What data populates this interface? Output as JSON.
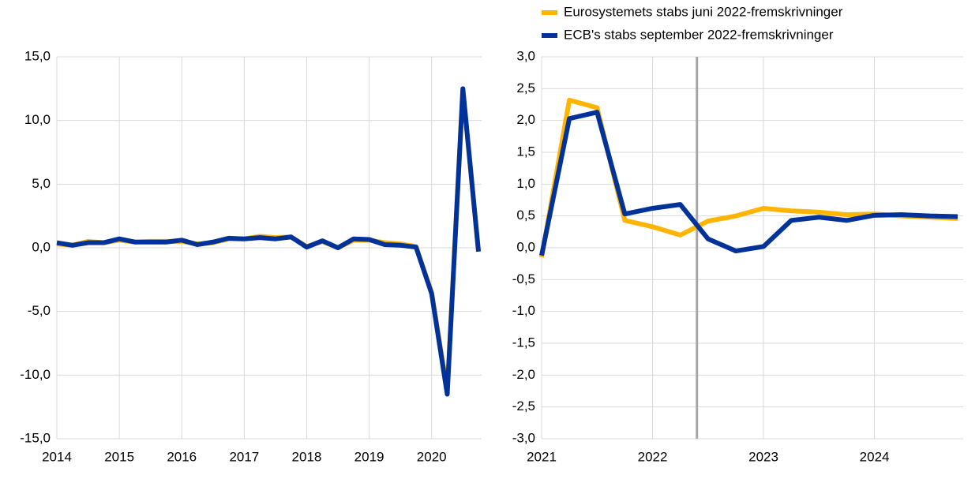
{
  "chart_data": [
    {
      "type": "line",
      "x": [
        2014,
        2014.25,
        2014.5,
        2014.75,
        2015,
        2015.25,
        2015.5,
        2015.75,
        2016,
        2016.25,
        2016.5,
        2016.75,
        2017,
        2017.25,
        2017.5,
        2017.75,
        2018,
        2018.25,
        2018.5,
        2018.75,
        2019,
        2019.25,
        2019.5,
        2019.75,
        2020,
        2020.25,
        2020.5,
        2020.75
      ],
      "series": [
        {
          "color": "#ffb400",
          "values": [
            0.3,
            0.2,
            0.5,
            0.4,
            0.6,
            0.45,
            0.5,
            0.5,
            0.5,
            0.3,
            0.4,
            0.7,
            0.7,
            0.9,
            0.8,
            0.85,
            0.1,
            0.5,
            0.0,
            0.6,
            0.6,
            0.4,
            0.3,
            0.1,
            -3.5,
            -11.2,
            12.4,
            -0.3
          ]
        },
        {
          "color": "#003299",
          "values": [
            0.4,
            0.2,
            0.4,
            0.4,
            0.7,
            0.45,
            0.45,
            0.45,
            0.6,
            0.25,
            0.45,
            0.75,
            0.7,
            0.8,
            0.7,
            0.85,
            0.05,
            0.55,
            0.0,
            0.7,
            0.65,
            0.25,
            0.2,
            0.05,
            -3.6,
            -11.5,
            12.5,
            -0.3
          ]
        }
      ],
      "xlim": [
        2014,
        2020.8
      ],
      "xticks": [
        2014,
        2015,
        2016,
        2017,
        2018,
        2019,
        2020
      ],
      "ylim": [
        -15,
        15
      ],
      "yticks": [
        {
          "value": -15,
          "label": "-15,0"
        },
        {
          "value": -10,
          "label": "-10,0"
        },
        {
          "value": -5,
          "label": "-5,0"
        },
        {
          "value": 0,
          "label": "0,0"
        },
        {
          "value": 5,
          "label": "5,0"
        },
        {
          "value": 10,
          "label": "10,0"
        },
        {
          "value": 15,
          "label": "15,0"
        }
      ],
      "grid": true
    },
    {
      "type": "line",
      "x": [
        2021,
        2021.25,
        2021.5,
        2021.75,
        2022,
        2022.25,
        2022.5,
        2022.75,
        2023,
        2023.25,
        2023.5,
        2023.75,
        2024,
        2024.25,
        2024.5,
        2024.75
      ],
      "series": [
        {
          "name": "Eurosystemets stabs juni 2022-fremskrivninger",
          "color": "#ffb400",
          "values": [
            -0.15,
            2.32,
            2.2,
            0.43,
            0.33,
            0.2,
            0.42,
            0.5,
            0.62,
            0.58,
            0.56,
            0.52,
            0.53,
            0.5,
            0.48,
            0.46
          ]
        },
        {
          "name": "ECB's stabs september 2022-fremskrivninger",
          "color": "#003299",
          "values": [
            -0.12,
            2.03,
            2.13,
            0.53,
            0.62,
            0.68,
            0.14,
            -0.05,
            0.02,
            0.43,
            0.48,
            0.43,
            0.51,
            0.52,
            0.5,
            0.49
          ]
        }
      ],
      "xlim": [
        2021,
        2024.8
      ],
      "xticks": [
        2021,
        2022,
        2023,
        2024
      ],
      "ylim": [
        -3,
        3
      ],
      "yticks": [
        {
          "value": -3,
          "label": "-3,0"
        },
        {
          "value": -2.5,
          "label": "-2,5"
        },
        {
          "value": -2,
          "label": "-2,0"
        },
        {
          "value": -1.5,
          "label": "-1,5"
        },
        {
          "value": -1,
          "label": "-1,0"
        },
        {
          "value": -0.5,
          "label": "-0,5"
        },
        {
          "value": 0,
          "label": "0,0"
        },
        {
          "value": 0.5,
          "label": "0,5"
        },
        {
          "value": 1,
          "label": "1,0"
        },
        {
          "value": 1.5,
          "label": "1,5"
        },
        {
          "value": 2,
          "label": "2,0"
        },
        {
          "value": 2.5,
          "label": "2,5"
        },
        {
          "value": 3,
          "label": "3,0"
        }
      ],
      "vline": 2022.4,
      "vline_color": "#a6a6a6",
      "grid": true,
      "legend": "top"
    }
  ]
}
